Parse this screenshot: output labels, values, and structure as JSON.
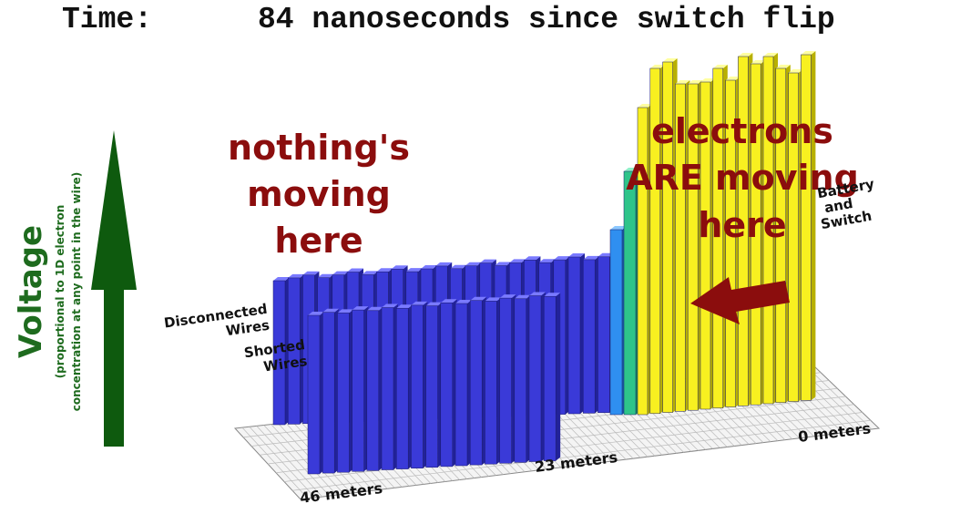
{
  "header": {
    "label": "Time:",
    "value": "84 nanoseconds since switch flip"
  },
  "axis": {
    "title": "Voltage",
    "subtitle_lines": [
      "(proportional to 1D electron",
      "concentration at any point in the wire)"
    ]
  },
  "annotations": {
    "left": [
      "nothing's",
      "moving",
      "here"
    ],
    "right": [
      "electrons",
      "ARE moving",
      "here"
    ]
  },
  "labels": {
    "disconnected": [
      "Disconnected",
      "Wires"
    ],
    "shorted": [
      "Shorted",
      "Wires"
    ],
    "battery": [
      "Battery",
      "and",
      "Switch"
    ]
  },
  "distances": [
    "46 meters",
    "23 meters",
    "0 meters"
  ]
}
